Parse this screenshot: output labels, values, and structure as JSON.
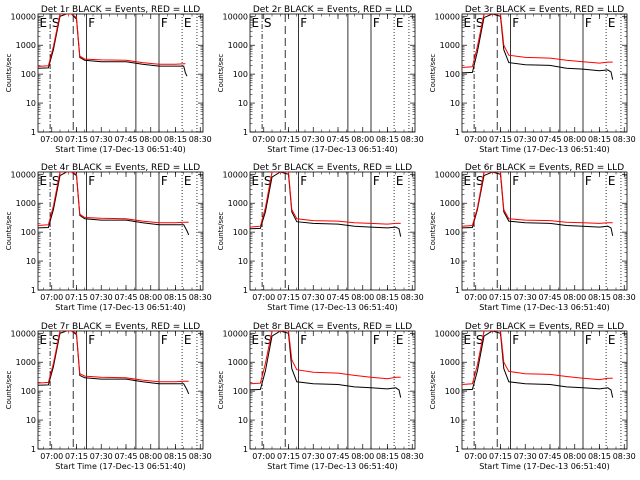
{
  "colors": {
    "events": "#000000",
    "lld": "#ff0000",
    "axis": "#000000",
    "background": "#ffffff"
  },
  "chart_data": [
    {
      "type": "line",
      "title": "Det 1r BLACK = Events, RED = LLD",
      "xlabel": "Start Time (17-Dec-13 06:51:40)",
      "ylabel": "Counts/sec",
      "xticks": [
        "07:00",
        "07:15",
        "07:30",
        "07:45",
        "08:00",
        "08:15",
        "08:30"
      ],
      "yticks": [
        "1",
        "10",
        "100",
        "1000",
        "10000"
      ],
      "xlim": [
        "06:51:40",
        "08:31:40"
      ],
      "ylim": [
        1,
        12000
      ],
      "y_scale": "log",
      "annotations": [
        "E",
        "S",
        "F",
        "F",
        "E"
      ],
      "series": [
        {
          "name": "Events",
          "color": "#000000",
          "x": [
            "06:51:40",
            "06:58",
            "07:01",
            "07:05",
            "07:09",
            "07:12",
            "07:15",
            "07:17",
            "07:20",
            "07:30",
            "07:45",
            "07:55",
            "08:05",
            "08:15",
            "08:20",
            "08:21",
            "08:22"
          ],
          "y": [
            160,
            165,
            700,
            10000,
            12000,
            12000,
            8000,
            380,
            300,
            270,
            270,
            220,
            190,
            190,
            190,
            110,
            85
          ]
        },
        {
          "name": "LLD",
          "color": "#ff0000",
          "x": [
            "06:51:40",
            "06:58",
            "07:01",
            "07:05",
            "07:09",
            "07:12",
            "07:15",
            "07:17",
            "07:20",
            "07:30",
            "07:45",
            "07:55",
            "08:05",
            "08:15",
            "08:20",
            "08:21"
          ],
          "y": [
            185,
            195,
            900,
            12000,
            12000,
            12000,
            9000,
            420,
            330,
            310,
            300,
            250,
            220,
            220,
            230,
            230
          ]
        }
      ]
    },
    {
      "type": "line",
      "title": "Det 2r BLACK = Events, RED = LLD",
      "xlabel": "Start Time (17-Dec-13 06:51:40)",
      "ylabel": "Counts/sec",
      "xticks": [
        "07:00",
        "07:15",
        "07:30",
        "07:45",
        "08:00",
        "08:15",
        "08:30"
      ],
      "yticks": [
        "1",
        "10",
        "100",
        "1000",
        "10000"
      ],
      "xlim": [
        "06:51:40",
        "08:31:40"
      ],
      "ylim": [
        1,
        12000
      ],
      "y_scale": "log",
      "annotations": [
        "E",
        "S",
        "F",
        "F",
        "E"
      ],
      "series": []
    },
    {
      "type": "line",
      "title": "Det 3r BLACK = Events, RED = LLD",
      "xlabel": "Start Time (17-Dec-13 06:51:40)",
      "ylabel": "Counts/sec",
      "xticks": [
        "07:00",
        "07:15",
        "07:30",
        "07:45",
        "08:00",
        "08:15",
        "08:30"
      ],
      "yticks": [
        "1",
        "10",
        "100",
        "1000",
        "10000"
      ],
      "xlim": [
        "06:51:40",
        "08:31:40"
      ],
      "ylim": [
        1,
        12000
      ],
      "y_scale": "log",
      "annotations": [
        "E",
        "S",
        "F",
        "F",
        "E"
      ],
      "series": [
        {
          "name": "Events",
          "color": "#000000",
          "x": [
            "06:51:40",
            "06:58",
            "07:01",
            "07:05",
            "07:10",
            "07:15",
            "07:17",
            "07:20",
            "07:30",
            "07:45",
            "07:55",
            "08:05",
            "08:15",
            "08:20",
            "08:22",
            "08:23"
          ],
          "y": [
            110,
            115,
            600,
            9000,
            12000,
            10000,
            700,
            250,
            210,
            200,
            160,
            150,
            130,
            140,
            120,
            65
          ]
        },
        {
          "name": "LLD",
          "color": "#ff0000",
          "x": [
            "06:51:40",
            "06:58",
            "07:01",
            "07:05",
            "07:10",
            "07:15",
            "07:17",
            "07:20",
            "07:30",
            "07:45",
            "07:55",
            "08:05",
            "08:15",
            "08:20",
            "08:23"
          ],
          "y": [
            170,
            180,
            900,
            12000,
            12000,
            12000,
            1000,
            450,
            380,
            360,
            300,
            270,
            240,
            260,
            260
          ]
        }
      ]
    },
    {
      "type": "line",
      "title": "Det 4r BLACK = Events, RED = LLD",
      "xlabel": "Start Time (17-Dec-13 06:51:40)",
      "ylabel": "Counts/sec",
      "xticks": [
        "07:00",
        "07:15",
        "07:30",
        "07:45",
        "08:00",
        "08:15",
        "08:30"
      ],
      "yticks": [
        "1",
        "10",
        "100",
        "1000",
        "10000"
      ],
      "xlim": [
        "06:51:40",
        "08:31:40"
      ],
      "ylim": [
        1,
        12000
      ],
      "y_scale": "log",
      "annotations": [
        "E",
        "S",
        "F",
        "F",
        "E"
      ],
      "series": [
        {
          "name": "Events",
          "color": "#000000",
          "x": [
            "06:51:40",
            "06:58",
            "07:01",
            "07:05",
            "07:09",
            "07:12",
            "07:15",
            "07:17",
            "07:20",
            "07:30",
            "07:45",
            "07:55",
            "08:05",
            "08:15",
            "08:20",
            "08:22",
            "08:23"
          ],
          "y": [
            140,
            145,
            600,
            9000,
            12000,
            12000,
            9000,
            380,
            290,
            260,
            260,
            210,
            180,
            180,
            180,
            110,
            80
          ]
        },
        {
          "name": "LLD",
          "color": "#ff0000",
          "x": [
            "06:51:40",
            "06:58",
            "07:01",
            "07:05",
            "07:09",
            "07:12",
            "07:15",
            "07:17",
            "07:20",
            "07:30",
            "07:45",
            "07:55",
            "08:05",
            "08:15",
            "08:20",
            "08:23"
          ],
          "y": [
            170,
            180,
            800,
            12000,
            12000,
            12000,
            10000,
            420,
            320,
            300,
            290,
            240,
            210,
            210,
            220,
            220
          ]
        }
      ]
    },
    {
      "type": "line",
      "title": "Det 5r BLACK = Events, RED = LLD",
      "xlabel": "Start Time (17-Dec-13 06:51:40)",
      "ylabel": "Counts/sec",
      "xticks": [
        "07:00",
        "07:15",
        "07:30",
        "07:45",
        "08:00",
        "08:15",
        "08:30"
      ],
      "yticks": [
        "1",
        "10",
        "100",
        "1000",
        "10000"
      ],
      "xlim": [
        "06:51:40",
        "08:31:40"
      ],
      "ylim": [
        1,
        12000
      ],
      "y_scale": "log",
      "annotations": [
        "E",
        "S",
        "F",
        "F",
        "E"
      ],
      "series": [
        {
          "name": "Events",
          "color": "#000000",
          "x": [
            "06:51:40",
            "06:58",
            "07:01",
            "07:05",
            "07:10",
            "07:15",
            "07:17",
            "07:20",
            "07:30",
            "07:45",
            "07:55",
            "08:05",
            "08:15",
            "08:20",
            "08:22",
            "08:23"
          ],
          "y": [
            130,
            135,
            500,
            8000,
            12000,
            10000,
            500,
            230,
            200,
            190,
            160,
            150,
            140,
            150,
            130,
            70
          ]
        },
        {
          "name": "LLD",
          "color": "#ff0000",
          "x": [
            "06:51:40",
            "06:58",
            "07:01",
            "07:05",
            "07:10",
            "07:15",
            "07:17",
            "07:20",
            "07:30",
            "07:45",
            "07:55",
            "08:05",
            "08:15",
            "08:20",
            "08:23"
          ],
          "y": [
            150,
            160,
            700,
            12000,
            12000,
            12000,
            600,
            290,
            250,
            240,
            210,
            200,
            190,
            200,
            200
          ]
        }
      ]
    },
    {
      "type": "line",
      "title": "Det 6r BLACK = Events, RED = LLD",
      "xlabel": "Start Time (17-Dec-13 06:51:40)",
      "ylabel": "Counts/sec",
      "xticks": [
        "07:00",
        "07:15",
        "07:30",
        "07:45",
        "08:00",
        "08:15",
        "08:30"
      ],
      "yticks": [
        "1",
        "10",
        "100",
        "1000",
        "10000"
      ],
      "xlim": [
        "06:51:40",
        "08:31:40"
      ],
      "ylim": [
        1,
        12000
      ],
      "y_scale": "log",
      "annotations": [
        "E",
        "S",
        "F",
        "F",
        "E"
      ],
      "series": [
        {
          "name": "Events",
          "color": "#000000",
          "x": [
            "06:51:40",
            "06:58",
            "07:01",
            "07:05",
            "07:10",
            "07:15",
            "07:17",
            "07:20",
            "07:30",
            "07:45",
            "07:55",
            "08:05",
            "08:15",
            "08:20",
            "08:22",
            "08:23"
          ],
          "y": [
            140,
            145,
            600,
            9000,
            12000,
            10000,
            500,
            240,
            210,
            200,
            170,
            160,
            150,
            160,
            140,
            75
          ]
        },
        {
          "name": "LLD",
          "color": "#ff0000",
          "x": [
            "06:51:40",
            "06:58",
            "07:01",
            "07:05",
            "07:10",
            "07:15",
            "07:17",
            "07:20",
            "07:30",
            "07:45",
            "07:55",
            "08:05",
            "08:15",
            "08:20",
            "08:23"
          ],
          "y": [
            160,
            170,
            700,
            12000,
            12000,
            12000,
            600,
            290,
            260,
            250,
            220,
            210,
            200,
            210,
            210
          ]
        }
      ]
    },
    {
      "type": "line",
      "title": "Det 7r BLACK = Events, RED = LLD",
      "xlabel": "Start Time (17-Dec-13 06:51:40)",
      "ylabel": "Counts/sec",
      "xticks": [
        "07:00",
        "07:15",
        "07:30",
        "07:45",
        "08:00",
        "08:15",
        "08:30"
      ],
      "yticks": [
        "1",
        "10",
        "100",
        "1000",
        "10000"
      ],
      "xlim": [
        "06:51:40",
        "08:31:40"
      ],
      "ylim": [
        1,
        12000
      ],
      "y_scale": "log",
      "annotations": [
        "E",
        "S",
        "F",
        "F",
        "E"
      ],
      "series": [
        {
          "name": "Events",
          "color": "#000000",
          "x": [
            "06:51:40",
            "06:58",
            "07:01",
            "07:05",
            "07:09",
            "07:12",
            "07:15",
            "07:17",
            "07:20",
            "07:30",
            "07:45",
            "07:55",
            "08:05",
            "08:15",
            "08:20",
            "08:22",
            "08:23"
          ],
          "y": [
            160,
            165,
            700,
            10000,
            12000,
            12000,
            9000,
            350,
            290,
            260,
            260,
            210,
            180,
            180,
            180,
            110,
            80
          ]
        },
        {
          "name": "LLD",
          "color": "#ff0000",
          "x": [
            "06:51:40",
            "06:58",
            "07:01",
            "07:05",
            "07:09",
            "07:12",
            "07:15",
            "07:17",
            "07:20",
            "07:30",
            "07:45",
            "07:55",
            "08:05",
            "08:15",
            "08:20",
            "08:23"
          ],
          "y": [
            190,
            200,
            900,
            12000,
            12000,
            12000,
            10000,
            400,
            330,
            300,
            290,
            240,
            210,
            210,
            220,
            220
          ]
        }
      ]
    },
    {
      "type": "line",
      "title": "Det 8r BLACK = Events, RED = LLD",
      "xlabel": "Start Time (17-Dec-13 06:51:40)",
      "ylabel": "Counts/sec",
      "xticks": [
        "07:00",
        "07:15",
        "07:30",
        "07:45",
        "08:00",
        "08:15",
        "08:30"
      ],
      "yticks": [
        "1",
        "10",
        "100",
        "1000",
        "10000"
      ],
      "xlim": [
        "06:51:40",
        "08:31:40"
      ],
      "ylim": [
        1,
        12000
      ],
      "y_scale": "log",
      "annotations": [
        "E",
        "S",
        "F",
        "F",
        "E"
      ],
      "series": [
        {
          "name": "Events",
          "color": "#000000",
          "x": [
            "06:51:40",
            "06:58",
            "07:01",
            "07:05",
            "07:10",
            "07:15",
            "07:17",
            "07:20",
            "07:30",
            "07:45",
            "07:55",
            "08:05",
            "08:15",
            "08:20",
            "08:22",
            "08:23"
          ],
          "y": [
            110,
            115,
            500,
            8000,
            12000,
            10000,
            600,
            210,
            180,
            170,
            140,
            130,
            120,
            130,
            110,
            60
          ]
        },
        {
          "name": "LLD",
          "color": "#ff0000",
          "x": [
            "06:51:40",
            "06:58",
            "07:01",
            "07:05",
            "07:10",
            "07:15",
            "07:17",
            "07:20",
            "07:30",
            "07:45",
            "07:55",
            "08:05",
            "08:15",
            "08:20",
            "08:23"
          ],
          "y": [
            180,
            190,
            900,
            12000,
            12000,
            12000,
            1200,
            550,
            450,
            420,
            350,
            300,
            270,
            300,
            300
          ]
        }
      ]
    },
    {
      "type": "line",
      "title": "Det 9r BLACK = Events, RED = LLD",
      "xlabel": "Start Time (17-Dec-13 06:51:40)",
      "ylabel": "Counts/sec",
      "xticks": [
        "07:00",
        "07:15",
        "07:30",
        "07:45",
        "08:00",
        "08:15",
        "08:30"
      ],
      "yticks": [
        "1",
        "10",
        "100",
        "1000",
        "10000"
      ],
      "xlim": [
        "06:51:40",
        "08:31:40"
      ],
      "ylim": [
        1,
        12000
      ],
      "y_scale": "log",
      "annotations": [
        "E",
        "S",
        "F",
        "F",
        "E"
      ],
      "series": [
        {
          "name": "Events",
          "color": "#000000",
          "x": [
            "06:51:40",
            "06:58",
            "07:01",
            "07:05",
            "07:10",
            "07:15",
            "07:17",
            "07:20",
            "07:30",
            "07:45",
            "07:55",
            "08:05",
            "08:15",
            "08:20",
            "08:22",
            "08:23"
          ],
          "y": [
            110,
            115,
            500,
            8000,
            12000,
            10000,
            600,
            210,
            180,
            170,
            140,
            130,
            120,
            130,
            110,
            60
          ]
        },
        {
          "name": "LLD",
          "color": "#ff0000",
          "x": [
            "06:51:40",
            "06:58",
            "07:01",
            "07:05",
            "07:10",
            "07:15",
            "07:17",
            "07:20",
            "07:30",
            "07:45",
            "07:55",
            "08:05",
            "08:15",
            "08:20",
            "08:23"
          ],
          "y": [
            170,
            180,
            800,
            12000,
            12000,
            12000,
            1000,
            480,
            400,
            380,
            320,
            280,
            250,
            280,
            280
          ]
        }
      ]
    }
  ]
}
